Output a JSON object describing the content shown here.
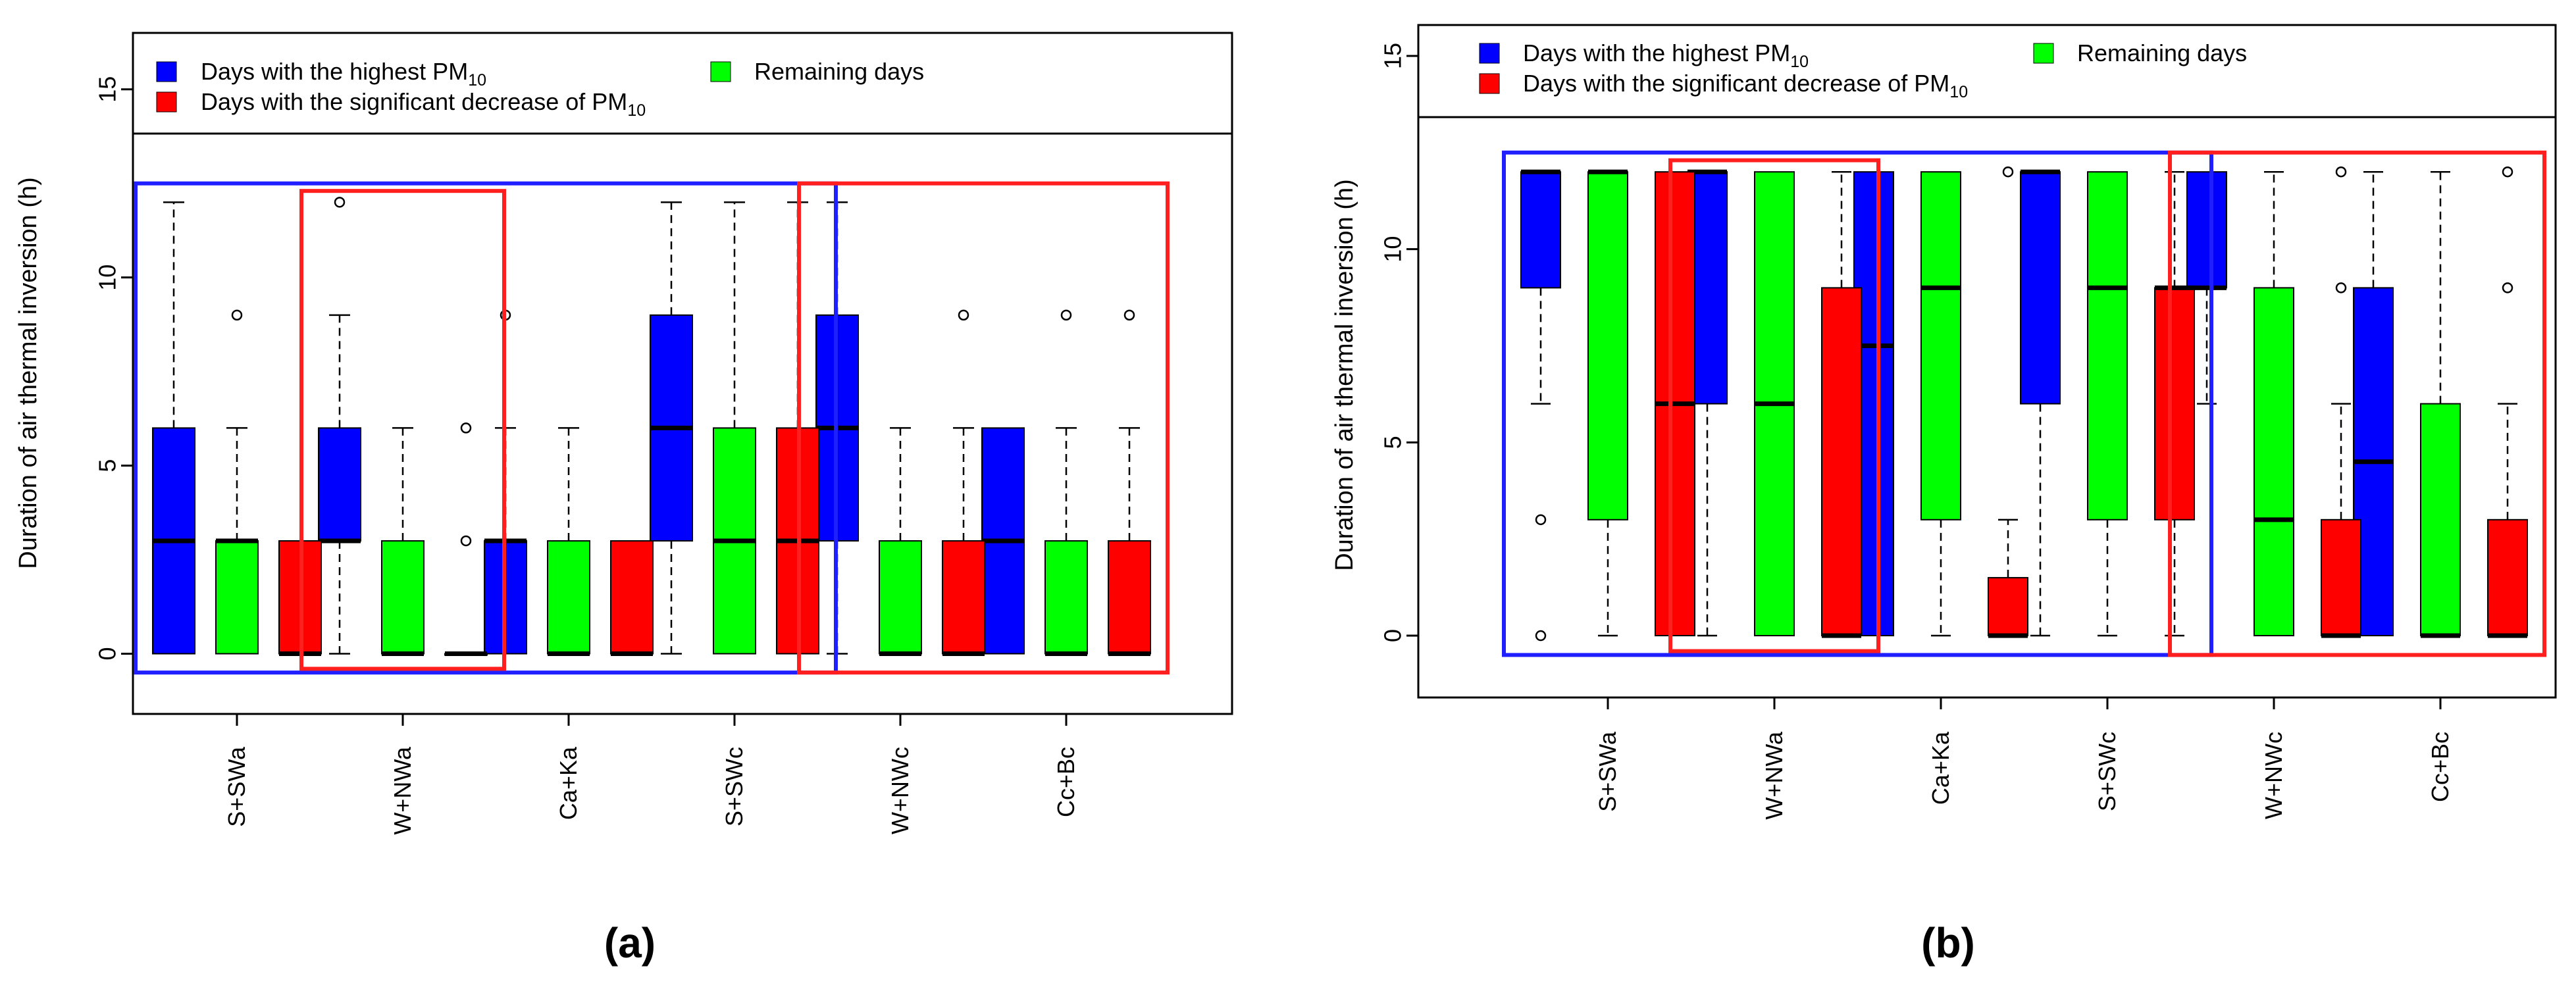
{
  "figure": {
    "colors": {
      "high": "#0000ff",
      "remaining": "#00ff00",
      "decrease": "#ff0000"
    }
  },
  "chart_data": [
    {
      "type": "boxplot",
      "panel_label": "(a)",
      "ylabel": "Duration of air thermal inversion (h)",
      "ylim": [
        -1.6,
        16.5
      ],
      "yticks": [
        0,
        5,
        10,
        15
      ],
      "categories": [
        "S+SWa",
        "W+NWa",
        "Ca+Ka",
        "S+SWc",
        "W+NWc",
        "Cc+Bc"
      ],
      "legend": {
        "high": {
          "text": "Days with the highest PM",
          "sub": "10"
        },
        "decrease": {
          "text": "Days with the significant decrease of PM",
          "sub": "10"
        },
        "remaining": {
          "text": "Remaining days",
          "sub": ""
        }
      },
      "series": [
        {
          "name": "Days with the highest PM10",
          "key": "high",
          "boxes": [
            {
              "min": 0,
              "q1": 0,
              "median": 3,
              "q3": 6,
              "max": 12,
              "outliers": []
            },
            {
              "min": 0,
              "q1": 3,
              "median": 3,
              "q3": 6,
              "max": 9,
              "outliers": [
                12
              ]
            },
            {
              "min": 0,
              "q1": 0,
              "median": 3,
              "q3": 3,
              "max": 6,
              "outliers": [
                9
              ]
            },
            {
              "min": 0,
              "q1": 3,
              "median": 6,
              "q3": 9,
              "max": 12,
              "outliers": []
            },
            {
              "min": 0,
              "q1": 3,
              "median": 6,
              "q3": 9,
              "max": 12,
              "outliers": []
            },
            {
              "min": 0,
              "q1": 0,
              "median": 3,
              "q3": 6,
              "max": 6,
              "outliers": []
            }
          ]
        },
        {
          "name": "Remaining days",
          "key": "remaining",
          "boxes": [
            {
              "min": 0,
              "q1": 0,
              "median": 3,
              "q3": 3,
              "max": 6,
              "outliers": [
                9
              ]
            },
            {
              "min": 0,
              "q1": 0,
              "median": 0,
              "q3": 3,
              "max": 6,
              "outliers": []
            },
            {
              "min": 0,
              "q1": 0,
              "median": 0,
              "q3": 3,
              "max": 6,
              "outliers": []
            },
            {
              "min": 0,
              "q1": 0,
              "median": 3,
              "q3": 6,
              "max": 12,
              "outliers": []
            },
            {
              "min": 0,
              "q1": 0,
              "median": 0,
              "q3": 3,
              "max": 6,
              "outliers": []
            },
            {
              "min": 0,
              "q1": 0,
              "median": 0,
              "q3": 3,
              "max": 6,
              "outliers": [
                9
              ]
            }
          ]
        },
        {
          "name": "Days with the significant decrease of PM10",
          "key": "decrease",
          "boxes": [
            {
              "min": 0,
              "q1": 0,
              "median": 0,
              "q3": 3,
              "max": 3,
              "outliers": []
            },
            {
              "min": 0,
              "q1": 0,
              "median": 0,
              "q3": 0,
              "max": 0,
              "outliers": [
                3,
                6
              ]
            },
            {
              "min": 0,
              "q1": 0,
              "median": 0,
              "q3": 3,
              "max": 3,
              "outliers": []
            },
            {
              "min": 0,
              "q1": 0,
              "median": 3,
              "q3": 6,
              "max": 12,
              "outliers": []
            },
            {
              "min": 0,
              "q1": 0,
              "median": 0,
              "q3": 3,
              "max": 6,
              "outliers": [
                9
              ]
            },
            {
              "min": 0,
              "q1": 0,
              "median": 0,
              "q3": 3,
              "max": 6,
              "outliers": [
                9
              ]
            }
          ]
        }
      ],
      "highlights": [
        {
          "color": "blue",
          "from_category": 0,
          "to_category": 3,
          "ymin": -0.5,
          "ymax": 12.5
        },
        {
          "color": "red",
          "from_category": 1,
          "to_category": 1,
          "ymin": -0.4,
          "ymax": 12.3
        },
        {
          "color": "red",
          "from_category": 4,
          "to_category": 5,
          "ymin": -0.5,
          "ymax": 12.5
        }
      ]
    },
    {
      "type": "boxplot",
      "panel_label": "(b)",
      "ylabel": "Duration of air thermal inversion (h)",
      "ylim": [
        -1.6,
        15.8
      ],
      "yticks": [
        0,
        5,
        10,
        15
      ],
      "categories": [
        "S+SWa",
        "W+NWa",
        "Ca+Ka",
        "S+SWc",
        "W+NWc",
        "Cc+Bc"
      ],
      "legend": {
        "high": {
          "text": "Days with the highest PM",
          "sub": "10"
        },
        "decrease": {
          "text": "Days with the significant decrease of PM",
          "sub": "10"
        },
        "remaining": {
          "text": "Remaining days",
          "sub": ""
        }
      },
      "series": [
        {
          "name": "Days with the highest PM10",
          "key": "high",
          "boxes": [
            {
              "min": 6,
              "q1": 9,
              "median": 12,
              "q3": 12,
              "max": 12,
              "outliers": [
                3,
                0
              ]
            },
            {
              "min": 0,
              "q1": 6,
              "median": 12,
              "q3": 12,
              "max": 12,
              "outliers": []
            },
            {
              "min": 0,
              "q1": 0,
              "median": 7.5,
              "q3": 12,
              "max": 12,
              "outliers": []
            },
            {
              "min": 0,
              "q1": 6,
              "median": 12,
              "q3": 12,
              "max": 12,
              "outliers": []
            },
            {
              "min": 6,
              "q1": 9,
              "median": 9,
              "q3": 12,
              "max": 12,
              "outliers": []
            },
            {
              "min": 0,
              "q1": 0,
              "median": 4.5,
              "q3": 9,
              "max": 12,
              "outliers": []
            }
          ]
        },
        {
          "name": "Remaining days",
          "key": "remaining",
          "boxes": [
            {
              "min": 0,
              "q1": 3,
              "median": 12,
              "q3": 12,
              "max": 12,
              "outliers": []
            },
            {
              "min": 0,
              "q1": 0,
              "median": 6,
              "q3": 12,
              "max": 12,
              "outliers": []
            },
            {
              "min": 0,
              "q1": 3,
              "median": 9,
              "q3": 12,
              "max": 12,
              "outliers": []
            },
            {
              "min": 0,
              "q1": 3,
              "median": 9,
              "q3": 12,
              "max": 12,
              "outliers": []
            },
            {
              "min": 0,
              "q1": 0,
              "median": 3,
              "q3": 9,
              "max": 12,
              "outliers": []
            },
            {
              "min": 0,
              "q1": 0,
              "median": 0,
              "q3": 6,
              "max": 12,
              "outliers": []
            }
          ]
        },
        {
          "name": "Days with the significant decrease of PM10",
          "key": "decrease",
          "boxes": [
            {
              "min": 0,
              "q1": 0,
              "median": 6,
              "q3": 12,
              "max": 12,
              "outliers": []
            },
            {
              "min": 0,
              "q1": 0,
              "median": 0,
              "q3": 9,
              "max": 12,
              "outliers": []
            },
            {
              "min": 0,
              "q1": 0,
              "median": 0,
              "q3": 1.5,
              "max": 3,
              "outliers": [
                12
              ]
            },
            {
              "min": 0,
              "q1": 3,
              "median": 9,
              "q3": 9,
              "max": 12,
              "outliers": []
            },
            {
              "min": 0,
              "q1": 0,
              "median": 0,
              "q3": 3,
              "max": 6,
              "outliers": [
                9,
                12
              ]
            },
            {
              "min": 0,
              "q1": 0,
              "median": 0,
              "q3": 3,
              "max": 6,
              "outliers": [
                9,
                12
              ]
            }
          ]
        }
      ],
      "highlights": [
        {
          "color": "blue",
          "from_category": 0,
          "to_category": 3,
          "ymin": -0.5,
          "ymax": 12.5
        },
        {
          "color": "red",
          "from_category": 1,
          "to_category": 1,
          "ymin": -0.4,
          "ymax": 12.3
        },
        {
          "color": "red",
          "from_category": 4,
          "to_category": 5,
          "ymin": -0.5,
          "ymax": 12.5
        }
      ]
    }
  ]
}
